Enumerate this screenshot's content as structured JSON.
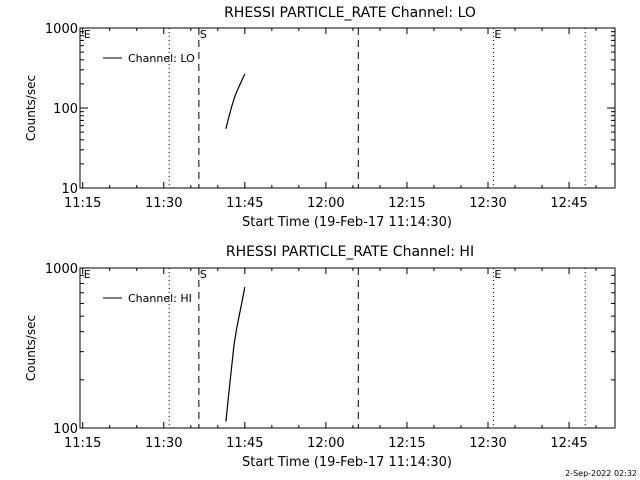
{
  "footer": {
    "timestamp": "2-Sep-2022 02:32"
  },
  "chart_data": [
    {
      "type": "line",
      "title": "RHESSI PARTICLE_RATE Channel: LO",
      "xlabel": "Start Time (19-Feb-17 11:14:30)",
      "ylabel": "Counts/sec",
      "yscale": "log",
      "ylim": [
        10,
        1000
      ],
      "xlim": [
        "11:14:30",
        "12:53:30"
      ],
      "x_ticks": [
        "11:15",
        "11:30",
        "11:45",
        "12:00",
        "12:15",
        "12:30",
        "12:45"
      ],
      "y_ticks": [
        {
          "value": 10,
          "label": "10"
        },
        {
          "value": 100,
          "label": "100"
        },
        {
          "value": 1000,
          "label": "1000"
        }
      ],
      "legend": {
        "position": "top-left",
        "entries": [
          "Channel: LO"
        ]
      },
      "series": [
        {
          "name": "Channel: LO",
          "x": [
            "11:41:30",
            "11:42:00",
            "11:42:30",
            "11:43:00",
            "11:43:30",
            "11:44:00",
            "11:44:30",
            "11:45:00"
          ],
          "y": [
            55,
            75,
            100,
            130,
            160,
            190,
            225,
            265
          ]
        }
      ],
      "markers": [
        {
          "x": "11:15:00",
          "label": "E",
          "style": "none"
        },
        {
          "x": "11:31:00",
          "label": "",
          "style": "dotted"
        },
        {
          "x": "11:36:30",
          "label": "S",
          "style": "dashed"
        },
        {
          "x": "12:06:00",
          "label": "",
          "style": "dashed"
        },
        {
          "x": "12:31:00",
          "label": "E",
          "style": "dotted"
        },
        {
          "x": "12:48:00",
          "label": "",
          "style": "dotted"
        }
      ]
    },
    {
      "type": "line",
      "title": "RHESSI PARTICLE_RATE Channel: HI",
      "xlabel": "Start Time (19-Feb-17 11:14:30)",
      "ylabel": "Counts/sec",
      "yscale": "log",
      "ylim": [
        100,
        1000
      ],
      "xlim": [
        "11:14:30",
        "12:53:30"
      ],
      "x_ticks": [
        "11:15",
        "11:30",
        "11:45",
        "12:00",
        "12:15",
        "12:30",
        "12:45"
      ],
      "y_ticks": [
        {
          "value": 100,
          "label": "100"
        },
        {
          "value": 1000,
          "label": "1000"
        }
      ],
      "legend": {
        "position": "top-left",
        "entries": [
          "Channel: HI"
        ]
      },
      "series": [
        {
          "name": "Channel: HI",
          "x": [
            "11:41:30",
            "11:42:00",
            "11:42:30",
            "11:43:00",
            "11:43:30",
            "11:44:00",
            "11:44:30",
            "11:45:00"
          ],
          "y": [
            110,
            160,
            230,
            330,
            420,
            510,
            620,
            760
          ]
        }
      ],
      "markers": [
        {
          "x": "11:15:00",
          "label": "E",
          "style": "none"
        },
        {
          "x": "11:31:00",
          "label": "",
          "style": "dotted"
        },
        {
          "x": "11:36:30",
          "label": "S",
          "style": "dashed"
        },
        {
          "x": "12:06:00",
          "label": "",
          "style": "dashed"
        },
        {
          "x": "12:31:00",
          "label": "E",
          "style": "dotted"
        },
        {
          "x": "12:48:00",
          "label": "",
          "style": "dotted"
        }
      ]
    }
  ]
}
